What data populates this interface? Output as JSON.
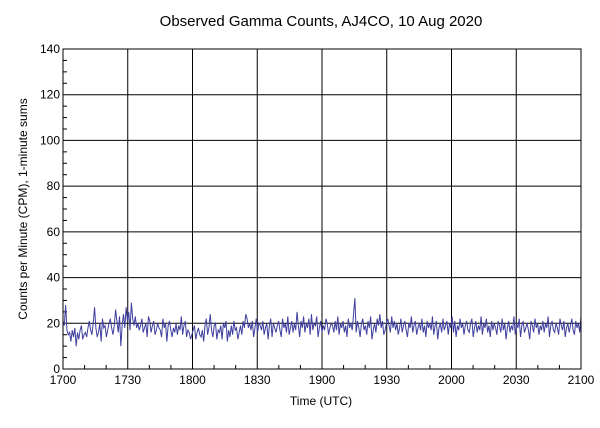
{
  "chart_data": {
    "type": "line",
    "title": "Observed Gamma Counts, AJ4CO, 10 Aug 2020",
    "xlabel": "Time (UTC)",
    "ylabel": "Counts per Minute (CPM), 1-minute sums",
    "xlim": [
      1700,
      2100
    ],
    "ylim": [
      0,
      140
    ],
    "x_ticks": [
      "1700",
      "1730",
      "1800",
      "1830",
      "1900",
      "1930",
      "2000",
      "2030",
      "2100"
    ],
    "y_ticks": [
      0,
      20,
      40,
      60,
      80,
      100,
      120,
      140
    ],
    "grid": true,
    "line_color": "#3f3f9f",
    "x_unit_note": "one value per minute starting 17:00 UTC",
    "values": [
      21,
      19,
      28,
      17,
      15,
      16,
      12,
      17,
      14,
      18,
      10,
      16,
      13,
      17,
      19,
      13,
      15,
      16,
      14,
      18,
      21,
      17,
      15,
      20,
      27,
      18,
      14,
      16,
      20,
      12,
      22,
      18,
      19,
      14,
      17,
      20,
      22,
      18,
      15,
      19,
      26,
      21,
      16,
      23,
      10,
      19,
      24,
      18,
      27,
      21,
      25,
      17,
      29,
      22,
      19,
      23,
      18,
      20,
      17,
      19,
      22,
      16,
      18,
      20,
      14,
      23,
      21,
      16,
      19,
      21,
      15,
      17,
      20,
      18,
      17,
      14,
      22,
      18,
      20,
      12,
      19,
      21,
      17,
      14,
      18,
      16,
      20,
      15,
      19,
      17,
      23,
      15,
      19,
      21,
      14,
      17,
      16,
      13,
      15,
      17,
      19,
      13,
      16,
      18,
      15,
      14,
      17,
      12,
      19,
      22,
      15,
      18,
      24,
      17,
      14,
      19,
      20,
      13,
      17,
      16,
      19,
      13,
      20,
      18,
      21,
      12,
      17,
      14,
      19,
      15,
      21,
      17,
      18,
      13,
      16,
      19,
      15,
      21,
      18,
      24,
      22,
      18,
      20,
      17,
      21,
      14,
      18,
      22,
      16,
      20,
      19,
      17,
      21,
      15,
      18,
      20,
      13,
      19,
      22,
      14,
      20,
      18,
      16,
      19,
      21,
      17,
      14,
      22,
      18,
      20,
      16,
      23,
      15,
      18,
      21,
      16,
      20,
      17,
      25,
      19,
      14,
      21,
      18,
      23,
      16,
      20,
      18,
      22,
      15,
      24,
      17,
      20,
      19,
      23,
      14,
      18,
      21,
      16,
      19,
      17,
      22,
      20,
      15,
      18,
      20,
      19,
      16,
      21,
      17,
      23,
      15,
      20,
      18,
      21,
      16,
      19,
      14,
      22,
      18,
      20,
      17,
      24,
      31,
      16,
      21,
      18,
      14,
      20,
      22,
      17,
      19,
      15,
      21,
      18,
      23,
      13,
      17,
      20,
      16,
      22,
      19,
      24,
      18,
      21,
      15,
      17,
      20,
      22,
      19,
      16,
      23,
      18,
      21,
      17,
      20,
      15,
      18,
      22,
      16,
      19,
      21,
      17,
      14,
      20,
      18,
      23,
      16,
      19,
      21,
      15,
      18,
      20,
      17,
      22,
      16,
      19,
      14,
      21,
      18,
      20,
      17,
      23,
      15,
      19,
      21,
      13,
      18,
      20,
      16,
      22,
      17,
      19,
      21,
      15,
      20,
      18,
      23,
      16,
      21,
      14,
      19,
      17,
      22,
      18,
      20,
      15,
      19,
      21,
      17,
      16,
      20,
      22,
      14,
      18,
      21,
      16,
      19,
      17,
      23,
      15,
      20,
      18,
      22,
      16,
      19,
      14,
      21,
      17,
      20,
      18,
      15,
      21,
      19,
      16,
      22,
      17,
      20,
      13,
      18,
      21,
      16,
      19,
      17,
      23,
      15,
      20,
      18,
      22,
      14,
      19,
      21,
      16,
      18,
      20,
      17,
      13,
      21,
      19,
      16,
      22,
      18,
      20,
      15,
      19,
      17,
      21,
      16,
      20,
      18,
      23,
      14,
      19,
      21,
      17,
      16,
      20,
      18,
      15,
      22,
      19,
      17,
      21,
      14,
      18,
      20,
      16,
      19,
      22,
      17,
      15,
      21,
      18,
      20,
      16,
      23
    ]
  }
}
